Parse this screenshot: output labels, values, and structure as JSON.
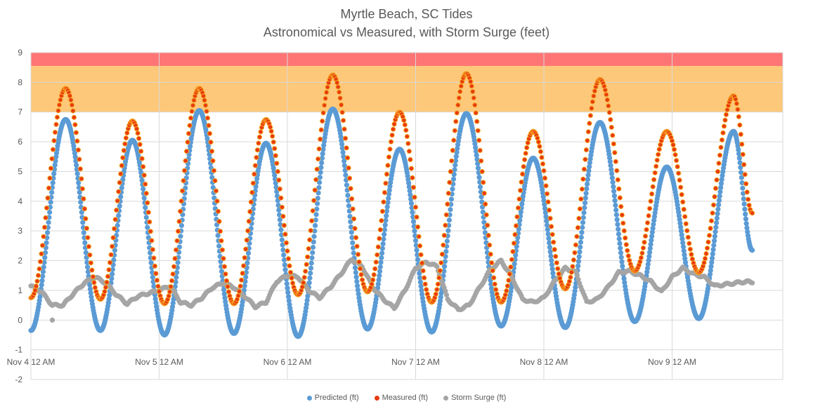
{
  "chart_data": {
    "type": "scatter",
    "title": "Myrtle Beach, SC Tides",
    "subtitle": "Astronomical vs Measured, with Storm Surge (feet)",
    "ylim": [
      -2,
      9
    ],
    "y_ticks": [
      -2,
      -1,
      0,
      1,
      2,
      3,
      4,
      5,
      6,
      7,
      8,
      9
    ],
    "x_tick_labels": [
      "Nov 4 12 AM",
      "Nov 5 12 AM",
      "Nov 6 12 AM",
      "Nov 7 12 AM",
      "Nov 8 12 AM",
      "Nov 9 12 AM"
    ],
    "x_range_hours": [
      0,
      146
    ],
    "grid": true,
    "legend_position": "bottom",
    "bands": [
      {
        "from": 7.0,
        "to": 8.55,
        "color": "#FEC87A"
      },
      {
        "from": 8.55,
        "to": 9.0,
        "color": "#FF7575"
      }
    ],
    "series": [
      {
        "name": "Predicted (ft)",
        "color": "#5B9BD5",
        "extrema": [
          {
            "hour": 0.0,
            "value": -0.35
          },
          {
            "hour": 6.5,
            "value": 6.75
          },
          {
            "hour": 13.0,
            "value": -0.35
          },
          {
            "hour": 19.0,
            "value": 6.05
          },
          {
            "hour": 25.0,
            "value": -0.5
          },
          {
            "hour": 31.5,
            "value": 7.05
          },
          {
            "hour": 38.0,
            "value": -0.45
          },
          {
            "hour": 44.0,
            "value": 5.95
          },
          {
            "hour": 50.0,
            "value": -0.55
          },
          {
            "hour": 56.5,
            "value": 7.1
          },
          {
            "hour": 63.0,
            "value": -0.3
          },
          {
            "hour": 69.0,
            "value": 5.75
          },
          {
            "hour": 75.0,
            "value": -0.4
          },
          {
            "hour": 81.5,
            "value": 6.95
          },
          {
            "hour": 88.0,
            "value": -0.2
          },
          {
            "hour": 94.0,
            "value": 5.45
          },
          {
            "hour": 100.0,
            "value": -0.25
          },
          {
            "hour": 106.5,
            "value": 6.65
          },
          {
            "hour": 113.0,
            "value": -0.05
          },
          {
            "hour": 119.0,
            "value": 5.15
          },
          {
            "hour": 125.0,
            "value": 0.05
          },
          {
            "hour": 131.5,
            "value": 6.35
          },
          {
            "hour": 135.0,
            "value": 2.35
          }
        ]
      },
      {
        "name": "Measured (ft)",
        "color": "#E83A0F",
        "extrema": [
          {
            "hour": 0.0,
            "value": 0.75
          },
          {
            "hour": 6.5,
            "value": 7.8
          },
          {
            "hour": 13.0,
            "value": 0.7
          },
          {
            "hour": 19.0,
            "value": 6.7
          },
          {
            "hour": 25.0,
            "value": 0.55
          },
          {
            "hour": 31.5,
            "value": 7.8
          },
          {
            "hour": 38.0,
            "value": 0.55
          },
          {
            "hour": 44.0,
            "value": 6.75
          },
          {
            "hour": 50.0,
            "value": 0.85
          },
          {
            "hour": 56.5,
            "value": 8.25
          },
          {
            "hour": 63.0,
            "value": 0.95
          },
          {
            "hour": 69.0,
            "value": 7.0
          },
          {
            "hour": 75.0,
            "value": 0.6
          },
          {
            "hour": 81.5,
            "value": 8.3
          },
          {
            "hour": 88.0,
            "value": 0.6
          },
          {
            "hour": 94.0,
            "value": 6.35
          },
          {
            "hour": 100.0,
            "value": 1.05
          },
          {
            "hour": 106.5,
            "value": 8.1
          },
          {
            "hour": 113.0,
            "value": 1.65
          },
          {
            "hour": 119.0,
            "value": 6.35
          },
          {
            "hour": 125.0,
            "value": 1.6
          },
          {
            "hour": 131.5,
            "value": 7.55
          },
          {
            "hour": 135.0,
            "value": 3.6
          }
        ]
      },
      {
        "name": "Storm Surge (ft)",
        "color": "#A5A5A5",
        "points": [
          [
            0,
            1.15
          ],
          [
            2,
            0.95
          ],
          [
            4,
            0.5
          ],
          [
            6,
            0.5
          ],
          [
            8,
            0.9
          ],
          [
            10,
            1.25
          ],
          [
            12,
            1.45
          ],
          [
            14,
            1.25
          ],
          [
            16,
            0.85
          ],
          [
            18,
            0.55
          ],
          [
            20,
            0.8
          ],
          [
            22,
            0.9
          ],
          [
            24,
            1.0
          ],
          [
            26,
            1.15
          ],
          [
            28,
            0.6
          ],
          [
            30,
            0.5
          ],
          [
            32,
            0.75
          ],
          [
            34,
            1.1
          ],
          [
            36,
            1.25
          ],
          [
            38,
            1.1
          ],
          [
            40,
            0.8
          ],
          [
            42,
            0.45
          ],
          [
            44,
            0.6
          ],
          [
            46,
            1.3
          ],
          [
            48,
            1.5
          ],
          [
            50,
            1.45
          ],
          [
            52,
            1.0
          ],
          [
            54,
            0.75
          ],
          [
            56,
            1.1
          ],
          [
            58,
            1.55
          ],
          [
            60,
            2.05
          ],
          [
            62,
            1.8
          ],
          [
            64,
            1.1
          ],
          [
            66,
            0.7
          ],
          [
            68,
            0.4
          ],
          [
            70,
            1.0
          ],
          [
            72,
            1.75
          ],
          [
            74,
            1.95
          ],
          [
            76,
            1.8
          ],
          [
            78,
            0.7
          ],
          [
            80,
            0.35
          ],
          [
            82,
            0.5
          ],
          [
            84,
            1.1
          ],
          [
            86,
            1.7
          ],
          [
            88,
            2.0
          ],
          [
            90,
            1.45
          ],
          [
            92,
            0.7
          ],
          [
            94,
            0.6
          ],
          [
            96,
            0.75
          ],
          [
            98,
            1.3
          ],
          [
            100,
            1.75
          ],
          [
            102,
            1.6
          ],
          [
            104,
            0.6
          ],
          [
            106,
            0.7
          ],
          [
            108,
            1.1
          ],
          [
            110,
            1.6
          ],
          [
            112,
            1.65
          ],
          [
            114,
            1.5
          ],
          [
            116,
            1.3
          ],
          [
            118,
            0.95
          ],
          [
            120,
            1.45
          ],
          [
            122,
            1.75
          ],
          [
            124,
            1.55
          ],
          [
            126,
            1.45
          ],
          [
            128,
            1.15
          ],
          [
            130,
            1.2
          ],
          [
            132,
            1.25
          ],
          [
            134,
            1.3
          ],
          [
            135,
            1.25
          ]
        ],
        "outliers": [
          [
            4,
            0.0
          ]
        ]
      }
    ]
  }
}
